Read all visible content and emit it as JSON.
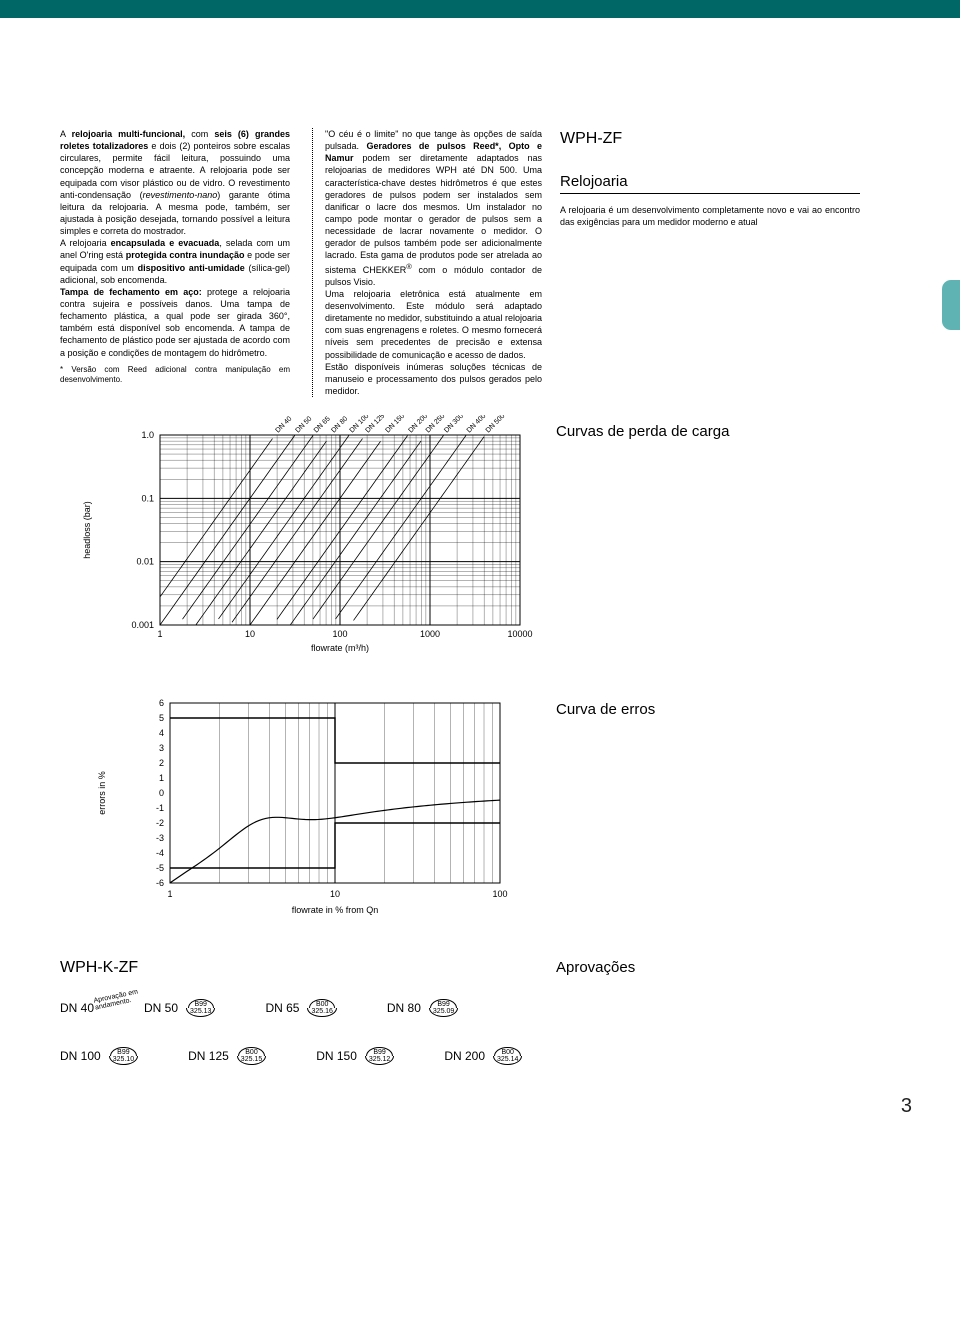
{
  "text": {
    "col1": "A <b>relojoaria multi-funcional,</b> com <b>seis (6) grandes roletes totalizadores</b> e dois (2) ponteiros sobre escalas circulares, permite fácil leitura, possuindo uma concepção moderna e atraente. A relojoaria pode ser equipada com visor plástico ou de vidro. O revestimento anti-condensação (<i>revestimento-nano</i>) garante ótima leitura da relojoaria. A mesma pode, também, ser ajustada à posição desejada, tornando possível a leitura simples e correta do mostrador.<br>A relojoaria <b>encapsulada e evacuada</b>, selada com um anel O'ring está <b>protegida contra inundação</b> e pode ser equipada com um <b>dispositivo anti-umidade</b> (sílica-gel) adicional, sob encomenda.<br><b>Tampa de fechamento em aço:</b> protege a relojoaria contra sujeira e possíveis danos. Uma tampa de fechamento plástica, a qual pode ser girada 360°, também está disponível sob encomenda. A tampa de fechamento de plástico pode ser ajustada de acordo com a posição e condições de montagem do hidrômetro.",
    "col1_foot": "* Versão com Reed adicional contra manipulação em desenvolvimento.",
    "col2": "\"O céu é o limite\" no que tange às opções de saída pulsada. <b>Geradores de pulsos Reed*, Opto e Namur</b> podem ser diretamente adaptados nas relojoarias de medidores WPH até DN 500. Uma característica-chave destes hidrômetros é que estes geradores de pulsos podem ser instalados sem danificar o lacre dos mesmos. Um instalador no campo pode montar o gerador de pulsos sem a necessidade de lacrar novamente o medidor. O gerador de pulsos também pode ser adicionalmente lacrado. Esta gama de produtos pode ser atrelada ao sistema CHEKKER<sup>®</sup> com o módulo contador de pulsos Visio.<br>Uma relojoaria eletrônica está atualmente em desenvolvimento. Este módulo será adaptado diretamente no medidor, substituindo a atual relojoaria com suas engrenagens e roletes. O mesmo fornecerá níveis sem precedentes de precisão e extensa possibilidade de comunicação e acesso de dados.<br>Estão disponíveis inúmeras soluções técnicas de manuseio e processamento dos pulsos gerados pelo medidor.",
    "product": "WPH-ZF",
    "h2_relojoaria": "Relojoaria",
    "col3": "A relojoaria é um desenvolvimento completamente novo e vai ao encontro das exigências para um medidor moderno e atual",
    "h2_curvas": "Curvas de perda de carga",
    "h2_erros": "Curva de erros",
    "product2": "WPH-K-ZF",
    "h2_aprov": "Aprovações",
    "pending": "Aprovação em<br>andamento."
  },
  "chart_headloss": {
    "type": "line-loglog",
    "xlabel": "flowrate (m³/h)",
    "ylabel": "headloss (bar)",
    "xlim": [
      1,
      10000
    ],
    "xticks": [
      "1",
      "10",
      "100",
      "1000",
      "10000"
    ],
    "ylim": [
      0.001,
      1.0
    ],
    "yticks": [
      "0.001",
      "0.01",
      "0.1",
      "1.0"
    ],
    "series_labels": [
      "DN 40",
      "DN 50",
      "DN 65",
      "DN 80",
      "DN 100",
      "DN 125",
      "DN 150",
      "DN 200",
      "DN 250",
      "DN 300",
      "DN 400",
      "DN 500"
    ],
    "line_color": "#000000",
    "grid_color": "#000000",
    "background": "#ffffff",
    "label_fontsize": 9
  },
  "chart_errors": {
    "type": "line-logx",
    "xlabel": "flowrate in % from Qn",
    "ylabel": "errors in %",
    "xlim": [
      1,
      100
    ],
    "xticks": [
      "1",
      "10",
      "100"
    ],
    "ylim": [
      -6,
      6
    ],
    "yticks": [
      "6",
      "5",
      "4",
      "3",
      "2",
      "1",
      "0",
      "-1",
      "-2",
      "-3",
      "-4",
      "-5",
      "-6"
    ],
    "tolerance_band": {
      "low1": -5,
      "high1": 5,
      "low2": -2,
      "high2": 2,
      "break_x": 10
    },
    "curve_color": "#000000",
    "grid_color": "#000000",
    "background": "#ffffff",
    "label_fontsize": 9
  },
  "approvals": [
    {
      "dn": "DN 40",
      "pending": true
    },
    {
      "dn": "DN 50",
      "code1": "B99",
      "code2": "325.13"
    },
    {
      "dn": "DN 65",
      "code1": "B00",
      "code2": "325.16"
    },
    {
      "dn": "DN 80",
      "code1": "B99",
      "code2": "325.09"
    },
    {
      "dn": "DN 100",
      "code1": "B99",
      "code2": "325.10"
    },
    {
      "dn": "DN 125",
      "code1": "B00",
      "code2": "325.15"
    },
    {
      "dn": "DN 150",
      "code1": "B99",
      "code2": "325.12"
    },
    {
      "dn": "DN 200",
      "code1": "B00",
      "code2": "325.14"
    }
  ],
  "pagenum": "3"
}
